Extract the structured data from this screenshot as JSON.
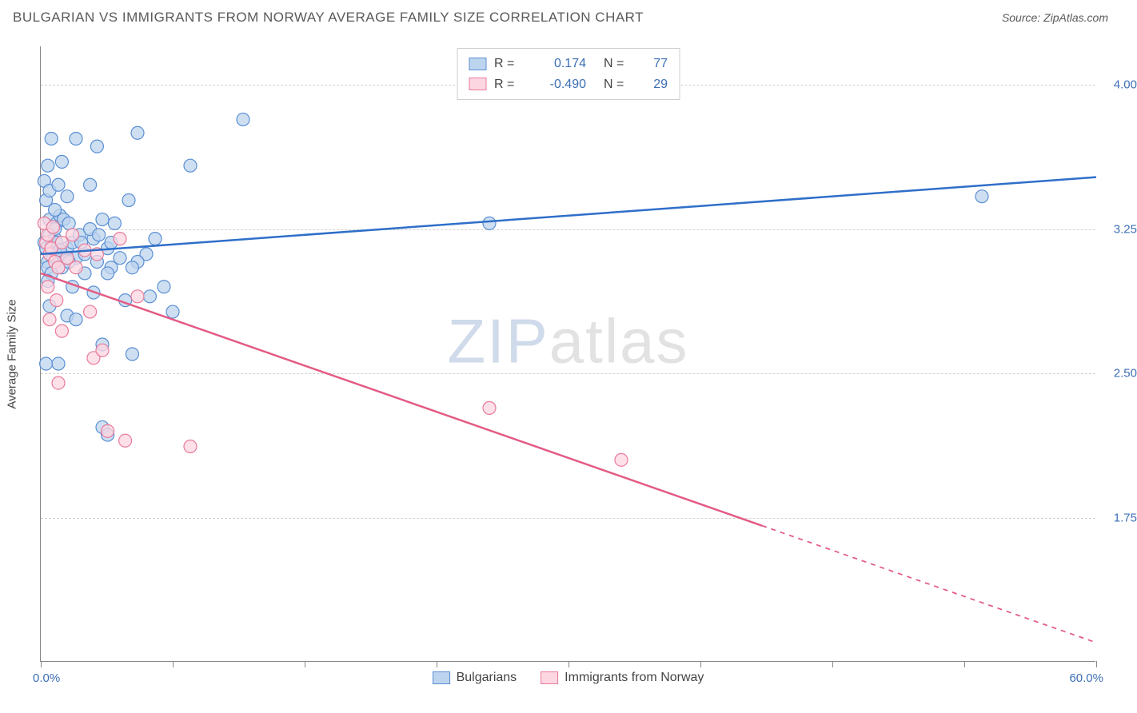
{
  "title": "BULGARIAN VS IMMIGRANTS FROM NORWAY AVERAGE FAMILY SIZE CORRELATION CHART",
  "source_label": "Source:",
  "source_name": "ZipAtlas.com",
  "watermark_zip": "ZIP",
  "watermark_atlas": "atlas",
  "chart": {
    "type": "scatter-with-regression",
    "background_color": "#ffffff",
    "grid_color": "#d0d0d0",
    "axis_color": "#888888",
    "tick_label_color": "#3d6fb5",
    "axis_title_color": "#444444",
    "x": {
      "min": 0,
      "max": 60,
      "label_min": "0.0%",
      "label_max": "60.0%",
      "ticks": [
        0,
        7.5,
        15,
        22.5,
        30,
        37.5,
        45,
        52.5,
        60
      ]
    },
    "y": {
      "min": 1.0,
      "max": 4.2,
      "ticks": [
        1.75,
        2.5,
        3.25,
        4.0
      ],
      "tick_labels": [
        "1.75",
        "2.50",
        "3.25",
        "4.00"
      ],
      "title": "Average Family Size"
    },
    "series": [
      {
        "name": "Bulgarians",
        "marker_fill": "#bdd4ee",
        "marker_stroke": "#5a8fd4",
        "marker_opacity": 0.75,
        "marker_radius": 8,
        "line_color": "#2f6fc9",
        "line_width": 2.5,
        "R": "0.174",
        "N": "77",
        "regression": {
          "x1": 0,
          "y1": 3.12,
          "x2": 60,
          "y2": 3.52,
          "solid_to_x": 60
        },
        "points": [
          [
            0.2,
            3.18
          ],
          [
            0.3,
            3.15
          ],
          [
            0.5,
            3.22
          ],
          [
            0.4,
            3.08
          ],
          [
            0.6,
            3.16
          ],
          [
            0.8,
            3.2
          ],
          [
            0.5,
            3.3
          ],
          [
            0.7,
            3.1
          ],
          [
            0.9,
            3.28
          ],
          [
            1.0,
            3.14
          ],
          [
            1.2,
            3.12
          ],
          [
            1.1,
            3.32
          ],
          [
            0.4,
            3.05
          ],
          [
            0.6,
            3.02
          ],
          [
            0.3,
            3.4
          ],
          [
            0.8,
            3.35
          ],
          [
            0.2,
            3.5
          ],
          [
            0.5,
            3.45
          ],
          [
            1.5,
            3.15
          ],
          [
            1.3,
            3.3
          ],
          [
            1.8,
            3.18
          ],
          [
            2.0,
            3.1
          ],
          [
            2.2,
            3.22
          ],
          [
            1.6,
            3.28
          ],
          [
            1.0,
            3.48
          ],
          [
            1.5,
            3.42
          ],
          [
            0.4,
            3.58
          ],
          [
            1.2,
            3.6
          ],
          [
            2.5,
            3.12
          ],
          [
            3.0,
            3.2
          ],
          [
            3.2,
            3.08
          ],
          [
            3.5,
            3.3
          ],
          [
            3.8,
            3.15
          ],
          [
            4.0,
            3.05
          ],
          [
            4.2,
            3.28
          ],
          [
            4.5,
            3.1
          ],
          [
            0.6,
            3.72
          ],
          [
            2.0,
            3.72
          ],
          [
            3.2,
            3.68
          ],
          [
            5.5,
            3.75
          ],
          [
            11.5,
            3.82
          ],
          [
            8.5,
            3.58
          ],
          [
            2.8,
            3.48
          ],
          [
            5.0,
            3.4
          ],
          [
            6.0,
            3.12
          ],
          [
            5.5,
            3.08
          ],
          [
            6.5,
            3.2
          ],
          [
            7.0,
            2.95
          ],
          [
            4.8,
            2.88
          ],
          [
            3.0,
            2.92
          ],
          [
            0.5,
            2.85
          ],
          [
            1.5,
            2.8
          ],
          [
            2.0,
            2.78
          ],
          [
            3.5,
            2.65
          ],
          [
            5.2,
            2.6
          ],
          [
            7.5,
            2.82
          ],
          [
            1.8,
            2.95
          ],
          [
            2.5,
            3.02
          ],
          [
            3.8,
            3.02
          ],
          [
            0.3,
            2.55
          ],
          [
            1.0,
            2.55
          ],
          [
            3.5,
            2.22
          ],
          [
            3.8,
            2.18
          ],
          [
            0.4,
            2.98
          ],
          [
            1.2,
            3.05
          ],
          [
            1.6,
            3.08
          ],
          [
            2.3,
            3.18
          ],
          [
            2.8,
            3.25
          ],
          [
            3.3,
            3.22
          ],
          [
            4.0,
            3.18
          ],
          [
            5.2,
            3.05
          ],
          [
            6.2,
            2.9
          ],
          [
            25.5,
            3.28
          ],
          [
            53.5,
            3.42
          ],
          [
            0.8,
            3.25
          ],
          [
            0.9,
            3.18
          ],
          [
            1.1,
            3.14
          ]
        ]
      },
      {
        "name": "Immigrants from Norway",
        "marker_fill": "#fcd6e0",
        "marker_stroke": "#e87b9b",
        "marker_opacity": 0.75,
        "marker_radius": 8,
        "line_color": "#e35b84",
        "line_width": 2.5,
        "R": "-0.490",
        "N": "29",
        "regression": {
          "x1": 0,
          "y1": 3.02,
          "x2": 60,
          "y2": 1.1,
          "solid_to_x": 41
        },
        "points": [
          [
            0.3,
            3.18
          ],
          [
            0.5,
            3.12
          ],
          [
            0.4,
            3.22
          ],
          [
            0.8,
            3.08
          ],
          [
            0.6,
            3.15
          ],
          [
            1.0,
            3.05
          ],
          [
            1.2,
            3.18
          ],
          [
            0.2,
            3.28
          ],
          [
            0.7,
            3.26
          ],
          [
            1.5,
            3.1
          ],
          [
            1.8,
            3.22
          ],
          [
            2.0,
            3.05
          ],
          [
            2.5,
            3.14
          ],
          [
            0.4,
            2.95
          ],
          [
            0.9,
            2.88
          ],
          [
            3.2,
            3.12
          ],
          [
            4.5,
            3.2
          ],
          [
            5.5,
            2.9
          ],
          [
            0.5,
            2.78
          ],
          [
            1.2,
            2.72
          ],
          [
            2.8,
            2.82
          ],
          [
            1.0,
            2.45
          ],
          [
            3.0,
            2.58
          ],
          [
            3.5,
            2.62
          ],
          [
            3.8,
            2.2
          ],
          [
            4.8,
            2.15
          ],
          [
            8.5,
            2.12
          ],
          [
            25.5,
            2.32
          ],
          [
            33.0,
            2.05
          ]
        ]
      }
    ],
    "stats_box": {
      "border_color": "#cfcfcf",
      "R_label": "R =",
      "N_label": "N ="
    },
    "bottom_legend": {
      "items": [
        "Bulgarians",
        "Immigrants from Norway"
      ]
    }
  }
}
